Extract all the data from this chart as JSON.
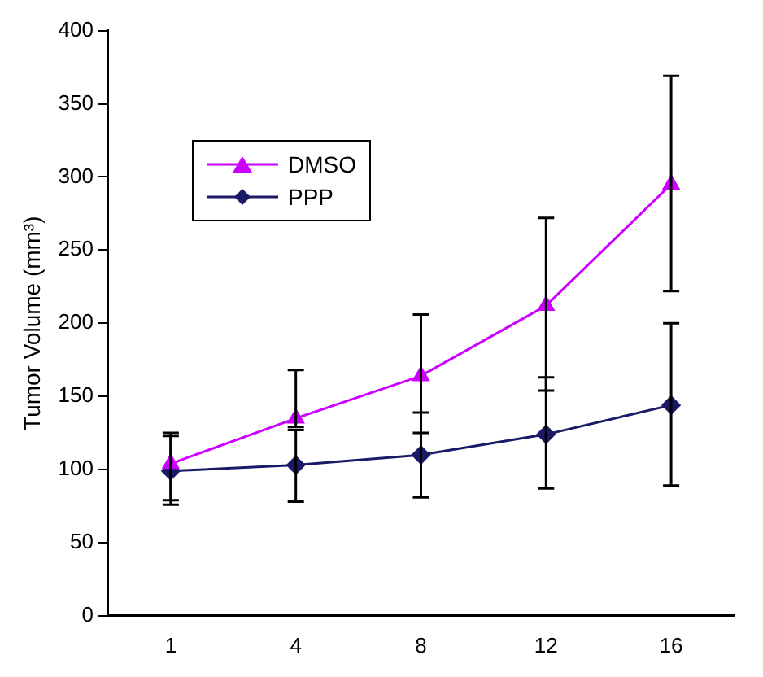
{
  "chart_data": {
    "type": "line",
    "ylabel": "Tumor Volume (mm³)",
    "categories": [
      "1",
      "4",
      "8",
      "12",
      "16"
    ],
    "series": [
      {
        "name": "DMSO",
        "color": "#cc00ff",
        "marker": "triangle",
        "values": [
          104,
          135,
          164,
          212,
          295
        ],
        "errors": [
          [
            79,
            125
          ],
          [
            129,
            168
          ],
          [
            125,
            206
          ],
          [
            154,
            272
          ],
          [
            222,
            369
          ]
        ]
      },
      {
        "name": "PPP",
        "color": "#1a1a66",
        "marker": "diamond",
        "values": [
          99,
          103,
          110,
          124,
          144
        ],
        "errors": [
          [
            76,
            123
          ],
          [
            78,
            127
          ],
          [
            81,
            139
          ],
          [
            87,
            163
          ],
          [
            89,
            200
          ]
        ]
      }
    ],
    "ylim": [
      0,
      400
    ],
    "yticks": [
      0,
      50,
      100,
      150,
      200,
      250,
      300,
      350,
      400
    ],
    "grid": false,
    "legend": "top left",
    "line_style": "solid"
  }
}
